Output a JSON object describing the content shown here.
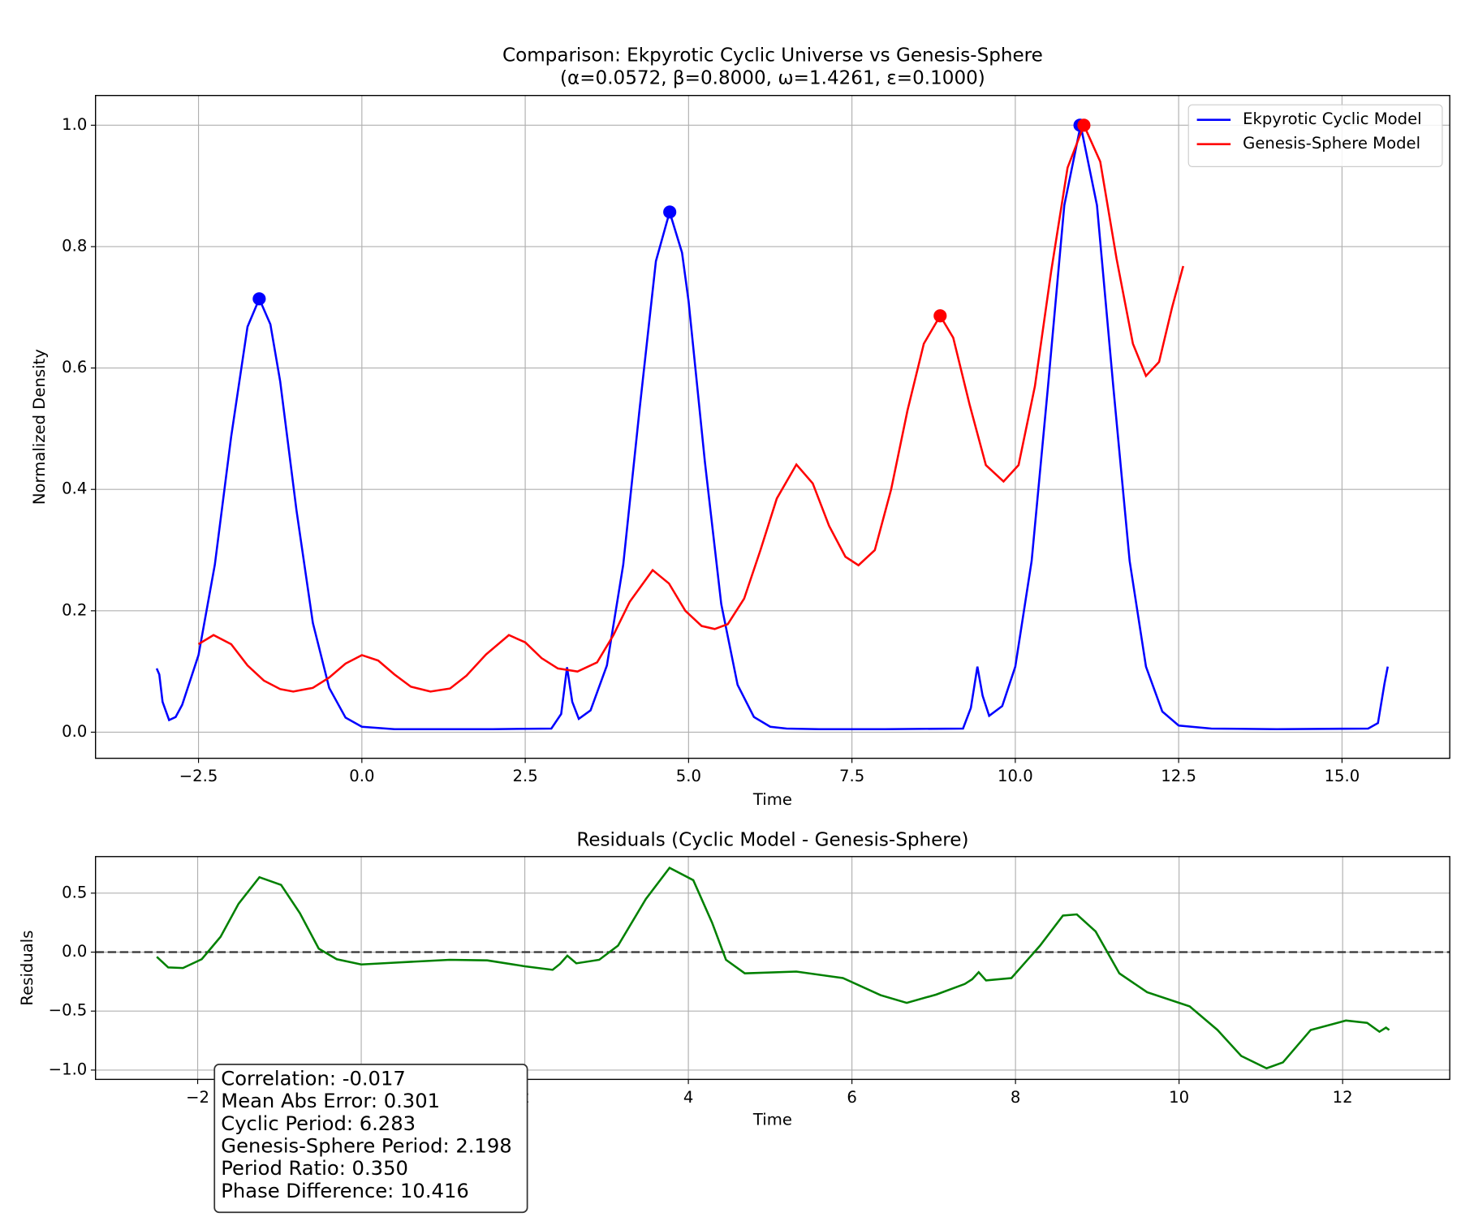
{
  "chart_data": [
    {
      "type": "line",
      "title": "Comparison: Ekpyrotic Cyclic Universe vs Genesis-Sphere",
      "subtitle": "(α=0.0572, β=0.8000, ω=1.4261, ε=0.1000)",
      "xlabel": "Time",
      "ylabel": "Normalized Density",
      "xlim": [
        -4.076,
        16.649
      ],
      "ylim": [
        -0.043,
        1.049
      ],
      "xticks": [
        {
          "value": -2.5,
          "label": "−2.5"
        },
        {
          "value": 0,
          "label": "0.0"
        },
        {
          "value": 2.5,
          "label": "2.5"
        },
        {
          "value": 5,
          "label": "5.0"
        },
        {
          "value": 7.5,
          "label": "7.5"
        },
        {
          "value": 10,
          "label": "10.0"
        },
        {
          "value": 12.5,
          "label": "12.5"
        },
        {
          "value": 15,
          "label": "15.0"
        }
      ],
      "yticks": [
        {
          "value": 0,
          "label": "0.0"
        },
        {
          "value": 0.2,
          "label": "0.2"
        },
        {
          "value": 0.4,
          "label": "0.4"
        },
        {
          "value": 0.6,
          "label": "0.6"
        },
        {
          "value": 0.8,
          "label": "0.8"
        },
        {
          "value": 1,
          "label": "1.0"
        }
      ],
      "grid": true,
      "legend": "upper-right",
      "series": [
        {
          "name": "Ekpyrotic Cyclic Model",
          "color": "#0000ff",
          "x": [
            -3.14,
            -3.1,
            -3.05,
            -2.95,
            -2.85,
            -2.75,
            -2.5,
            -2.25,
            -2.0,
            -1.75,
            -1.57,
            -1.4,
            -1.25,
            -1.0,
            -0.75,
            -0.5,
            -0.25,
            0,
            0.5,
            1,
            2,
            2.9,
            3.05,
            3.14,
            3.22,
            3.32,
            3.5,
            3.75,
            4.0,
            4.25,
            4.5,
            4.71,
            4.9,
            5.0,
            5.25,
            5.5,
            5.75,
            6.0,
            6.25,
            6.5,
            7,
            8,
            9.2,
            9.32,
            9.42,
            9.5,
            9.6,
            9.8,
            10.0,
            10.25,
            10.5,
            10.75,
            11.0,
            11.25,
            11.5,
            11.75,
            12.0,
            12.25,
            12.5,
            13,
            14,
            15.4,
            15.55,
            15.65,
            15.7
          ],
          "values": [
            0.105,
            0.095,
            0.05,
            0.02,
            0.025,
            0.045,
            0.127,
            0.276,
            0.487,
            0.668,
            0.714,
            0.672,
            0.578,
            0.365,
            0.18,
            0.073,
            0.024,
            0.009,
            0.005,
            0.005,
            0.005,
            0.006,
            0.03,
            0.107,
            0.05,
            0.022,
            0.036,
            0.11,
            0.276,
            0.532,
            0.776,
            0.857,
            0.79,
            0.71,
            0.445,
            0.211,
            0.078,
            0.025,
            0.009,
            0.006,
            0.005,
            0.005,
            0.006,
            0.04,
            0.108,
            0.06,
            0.027,
            0.043,
            0.108,
            0.282,
            0.569,
            0.868,
            1.0,
            0.868,
            0.569,
            0.282,
            0.108,
            0.034,
            0.011,
            0.006,
            0.005,
            0.006,
            0.015,
            0.08,
            0.108
          ],
          "peaks_x": [
            -1.571,
            4.712,
            10.99
          ],
          "peaks_y": [
            0.714,
            0.857,
            1.0
          ]
        },
        {
          "name": "Genesis-Sphere Model",
          "color": "#ff0000",
          "x": [
            -2.5,
            -2.27,
            -2.0,
            -1.75,
            -1.5,
            -1.25,
            -1.05,
            -0.75,
            -0.5,
            -0.25,
            0,
            0.25,
            0.5,
            0.75,
            1.05,
            1.35,
            1.6,
            1.9,
            2.25,
            2.5,
            2.75,
            3.0,
            3.3,
            3.6,
            3.85,
            4.1,
            4.45,
            4.7,
            4.95,
            5.2,
            5.4,
            5.6,
            5.85,
            6.1,
            6.35,
            6.65,
            6.9,
            7.15,
            7.4,
            7.6,
            7.85,
            8.1,
            8.35,
            8.6,
            8.85,
            9.05,
            9.3,
            9.55,
            9.82,
            10.05,
            10.3,
            10.55,
            10.8,
            11.05,
            11.3,
            11.55,
            11.8,
            12.0,
            12.2,
            12.4,
            12.57
          ],
          "values": [
            0.145,
            0.16,
            0.145,
            0.11,
            0.085,
            0.071,
            0.067,
            0.073,
            0.09,
            0.113,
            0.127,
            0.118,
            0.095,
            0.075,
            0.067,
            0.072,
            0.093,
            0.128,
            0.16,
            0.148,
            0.122,
            0.105,
            0.1,
            0.115,
            0.16,
            0.215,
            0.267,
            0.245,
            0.2,
            0.175,
            0.17,
            0.178,
            0.22,
            0.3,
            0.385,
            0.441,
            0.41,
            0.34,
            0.289,
            0.275,
            0.3,
            0.4,
            0.53,
            0.64,
            0.686,
            0.65,
            0.54,
            0.44,
            0.413,
            0.44,
            0.57,
            0.76,
            0.93,
            1.0,
            0.94,
            0.78,
            0.64,
            0.587,
            0.61,
            0.7,
            0.768
          ],
          "peaks_x": [
            8.85,
            11.05
          ],
          "peaks_y": [
            0.686,
            1.0
          ]
        }
      ]
    },
    {
      "type": "line",
      "title": "Residuals (Cyclic Model - Genesis-Sphere)",
      "xlabel": "Time",
      "ylabel": "Residuals",
      "xlim": [
        -3.249,
        13.31
      ],
      "ylim": [
        -1.079,
        0.81
      ],
      "xticks": [
        {
          "value": -2,
          "label": "−2"
        },
        0,
        2,
        4,
        6,
        8,
        10,
        12
      ],
      "yticks": [
        {
          "value": -1,
          "label": "−1.0"
        },
        {
          "value": -0.5,
          "label": "−0.5"
        },
        {
          "value": 0,
          "label": "0.0"
        },
        0.5
      ],
      "grid": true,
      "hline": 0,
      "hline_color": "#333333",
      "series": [
        {
          "color": "#008000",
          "x": [
            -2.5,
            -2.36,
            -2.18,
            -1.95,
            -1.72,
            -1.5,
            -1.245,
            -0.98,
            -0.75,
            -0.52,
            -0.3,
            0,
            0.39,
            1.08,
            1.54,
            2.0,
            2.34,
            2.43,
            2.52,
            2.63,
            2.91,
            3.14,
            3.48,
            3.77,
            4.06,
            4.29,
            4.46,
            4.69,
            5.32,
            5.89,
            6.35,
            6.67,
            7.03,
            7.38,
            7.47,
            7.55,
            7.64,
            7.95,
            8.3,
            8.58,
            8.75,
            8.98,
            9.27,
            9.61,
            10.13,
            10.47,
            10.76,
            11.07,
            11.27,
            11.61,
            12.04,
            12.3,
            12.45,
            12.53,
            12.57
          ],
          "values": [
            -0.04,
            -0.13,
            -0.135,
            -0.06,
            0.13,
            0.41,
            0.635,
            0.57,
            0.33,
            0.03,
            -0.06,
            -0.105,
            -0.09,
            -0.065,
            -0.07,
            -0.12,
            -0.15,
            -0.1,
            -0.03,
            -0.095,
            -0.065,
            0.055,
            0.45,
            0.715,
            0.61,
            0.25,
            -0.065,
            -0.18,
            -0.165,
            -0.22,
            -0.365,
            -0.43,
            -0.36,
            -0.27,
            -0.23,
            -0.17,
            -0.24,
            -0.22,
            0.055,
            0.31,
            0.32,
            0.175,
            -0.18,
            -0.34,
            -0.46,
            -0.66,
            -0.88,
            -0.985,
            -0.935,
            -0.66,
            -0.58,
            -0.6,
            -0.675,
            -0.64,
            -0.66
          ]
        }
      ],
      "stats_box": [
        "Correlation: -0.017",
        "Mean Abs Error: 0.301",
        "Cyclic Period: 6.283",
        "Genesis-Sphere Period: 2.198",
        "Period Ratio: 0.350",
        "Phase Difference: 10.416"
      ]
    }
  ]
}
